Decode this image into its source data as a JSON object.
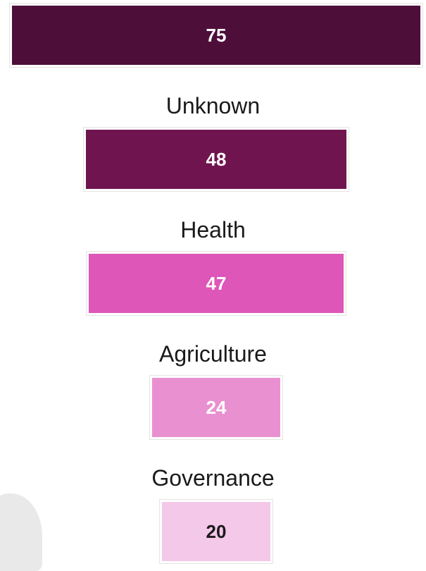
{
  "chart_data": {
    "type": "funnel",
    "categories": [
      "",
      "Unknown",
      "Health",
      "Agriculture",
      "Governance"
    ],
    "values": [
      75,
      48,
      47,
      24,
      20
    ],
    "colors": [
      "#4d0f3a",
      "#701450",
      "#dd56b8",
      "#e991d0",
      "#f4c8e8"
    ],
    "value_label_colors": [
      "#ffffff",
      "#ffffff",
      "#ffffff",
      "#ffffff",
      "#1a1a1a"
    ]
  }
}
